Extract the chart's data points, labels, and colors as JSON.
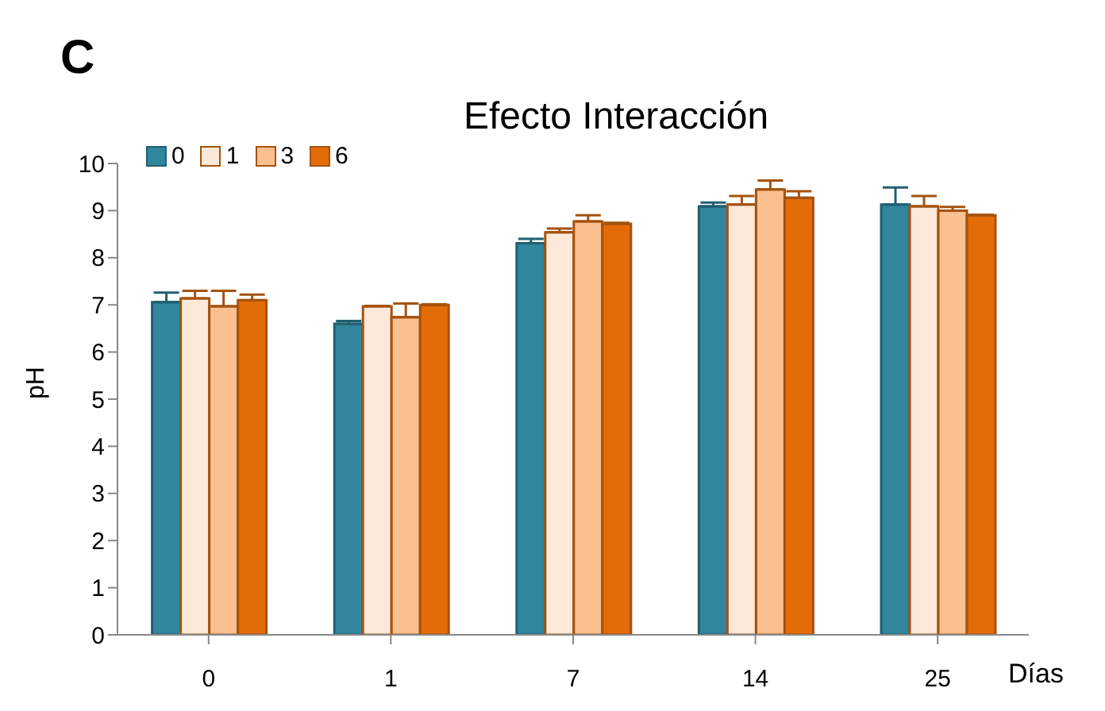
{
  "chart_data": {
    "type": "bar",
    "title": "Efecto Interacción",
    "ylabel": "pH",
    "xlabel": "Días",
    "annotations": [
      "C"
    ],
    "categories": [
      "0",
      "1",
      "7",
      "14",
      "25"
    ],
    "series": [
      {
        "name": "0",
        "color": "#31859c",
        "values": [
          7.06,
          6.6,
          8.31,
          9.09,
          9.13
        ],
        "errors": [
          [
            7.06,
            7.26
          ],
          [
            6.6,
            6.66
          ],
          [
            8.31,
            8.4
          ],
          [
            9.09,
            9.17
          ],
          [
            9.13,
            9.49
          ]
        ]
      },
      {
        "name": "1",
        "color": "#fde9d9",
        "values": [
          7.14,
          6.97,
          8.54,
          9.13,
          9.09
        ],
        "errors": [
          [
            7.14,
            7.3
          ],
          [
            6.97,
            6.98
          ],
          [
            8.54,
            8.62
          ],
          [
            9.13,
            9.31
          ],
          [
            9.09,
            9.31
          ]
        ]
      },
      {
        "name": "3",
        "color": "#fac090",
        "values": [
          6.97,
          6.74,
          8.77,
          9.45,
          9.0
        ],
        "errors": [
          [
            6.97,
            7.3
          ],
          [
            6.74,
            7.03
          ],
          [
            8.77,
            8.9
          ],
          [
            9.45,
            9.64
          ],
          [
            9.0,
            9.08
          ]
        ]
      },
      {
        "name": "6",
        "color": "#e36c09",
        "values": [
          7.1,
          7.0,
          8.72,
          9.27,
          8.9
        ],
        "errors": [
          [
            7.1,
            7.22
          ],
          [
            7.0,
            7.01
          ],
          [
            8.72,
            8.74
          ],
          [
            9.27,
            9.41
          ],
          [
            8.9,
            8.91
          ]
        ]
      }
    ],
    "ylim": [
      0,
      10
    ],
    "yticks": [
      0,
      1,
      2,
      3,
      4,
      5,
      6,
      7,
      8,
      9,
      10
    ],
    "grid": false,
    "legend": "top left"
  }
}
